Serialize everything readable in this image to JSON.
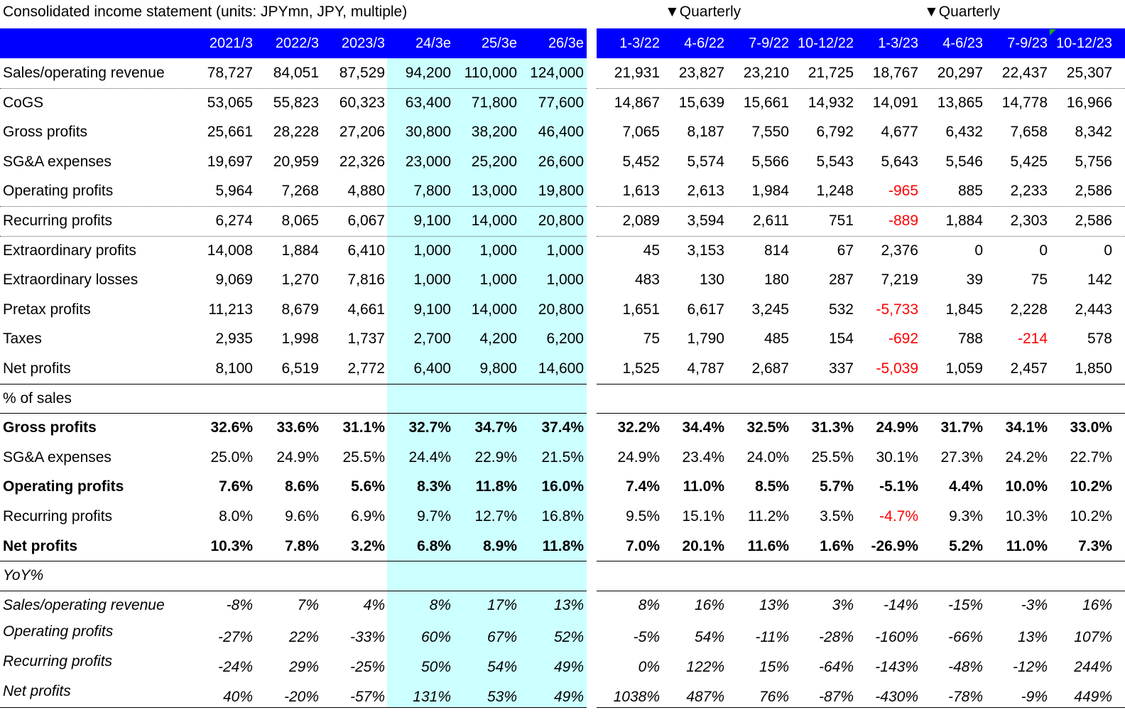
{
  "title": "Consolidated income statement (units: JPYmn, JPY, multiple)",
  "quarterly_labels": [
    "▼Quarterly",
    "▼Quarterly"
  ],
  "annual_headers": [
    "2021/3",
    "2022/3",
    "2023/3",
    "24/3e",
    "25/3e",
    "26/3e"
  ],
  "quarter_headers": [
    "1-3/22",
    "4-6/22",
    "7-9/22",
    "10-12/22",
    "1-3/23",
    "4-6/23",
    "7-9/23",
    "10-12/23"
  ],
  "rows": [
    {
      "label": "Sales/operating revenue",
      "style": "normal",
      "annual": [
        "78,727",
        "84,051",
        "87,529",
        "94,200",
        "110,000",
        "124,000"
      ],
      "quarterly": [
        "21,931",
        "23,827",
        "23,210",
        "21,725",
        "18,767",
        "20,297",
        "22,437",
        "25,307"
      ]
    },
    {
      "label": "CoGS",
      "style": "normal",
      "annual": [
        "53,065",
        "55,823",
        "60,323",
        "63,400",
        "71,800",
        "77,600"
      ],
      "quarterly": [
        "14,867",
        "15,639",
        "15,661",
        "14,932",
        "14,091",
        "13,865",
        "14,778",
        "16,966"
      ]
    },
    {
      "label": "Gross profits",
      "style": "normal",
      "annual": [
        "25,661",
        "28,228",
        "27,206",
        "30,800",
        "38,200",
        "46,400"
      ],
      "quarterly": [
        "7,065",
        "8,187",
        "7,550",
        "6,792",
        "4,677",
        "6,432",
        "7,658",
        "8,342"
      ]
    },
    {
      "label": "SG&A expenses",
      "style": "normal",
      "annual": [
        "19,697",
        "20,959",
        "22,326",
        "23,000",
        "25,200",
        "26,600"
      ],
      "quarterly": [
        "5,452",
        "5,574",
        "5,566",
        "5,543",
        "5,643",
        "5,546",
        "5,425",
        "5,756"
      ]
    },
    {
      "label": "Operating profits",
      "style": "normal",
      "annual": [
        "5,964",
        "7,268",
        "4,880",
        "7,800",
        "13,000",
        "19,800"
      ],
      "quarterly": [
        "1,613",
        "2,613",
        "1,984",
        "1,248",
        "-965",
        "885",
        "2,233",
        "2,586"
      ]
    },
    {
      "label": "Recurring profits",
      "style": "normal",
      "annual": [
        "6,274",
        "8,065",
        "6,067",
        "9,100",
        "14,000",
        "20,800"
      ],
      "quarterly": [
        "2,089",
        "3,594",
        "2,611",
        "751",
        "-889",
        "1,884",
        "2,303",
        "2,586"
      ]
    },
    {
      "label": "Extraordinary profits",
      "style": "normal",
      "annual": [
        "14,008",
        "1,884",
        "6,410",
        "1,000",
        "1,000",
        "1,000"
      ],
      "quarterly": [
        "45",
        "3,153",
        "814",
        "67",
        "2,376",
        "0",
        "0",
        "0"
      ]
    },
    {
      "label": "Extraordinary losses",
      "style": "normal",
      "annual": [
        "9,069",
        "1,270",
        "7,816",
        "1,000",
        "1,000",
        "1,000"
      ],
      "quarterly": [
        "483",
        "130",
        "180",
        "287",
        "7,219",
        "39",
        "75",
        "142"
      ]
    },
    {
      "label": "Pretax profits",
      "style": "normal",
      "annual": [
        "11,213",
        "8,679",
        "4,661",
        "9,100",
        "14,000",
        "20,800"
      ],
      "quarterly": [
        "1,651",
        "6,617",
        "3,245",
        "532",
        "-5,733",
        "1,845",
        "2,228",
        "2,443"
      ]
    },
    {
      "label": "Taxes",
      "style": "normal",
      "annual": [
        "2,935",
        "1,998",
        "1,737",
        "2,700",
        "4,200",
        "6,200"
      ],
      "quarterly": [
        "75",
        "1,790",
        "485",
        "154",
        "-692",
        "788",
        "-214",
        "578"
      ]
    },
    {
      "label": "Net profits",
      "style": "normal",
      "annual": [
        "8,100",
        "6,519",
        "2,772",
        "6,400",
        "9,800",
        "14,600"
      ],
      "quarterly": [
        "1,525",
        "4,787",
        "2,687",
        "337",
        "-5,039",
        "1,059",
        "2,457",
        "1,850"
      ]
    },
    {
      "label": "% of sales",
      "style": "section",
      "annual": [],
      "quarterly": []
    },
    {
      "label": "Gross profits",
      "style": "bold",
      "annual": [
        "32.6%",
        "33.6%",
        "31.1%",
        "32.7%",
        "34.7%",
        "37.4%"
      ],
      "quarterly": [
        "32.2%",
        "34.4%",
        "32.5%",
        "31.3%",
        "24.9%",
        "31.7%",
        "34.1%",
        "33.0%"
      ]
    },
    {
      "label": "SG&A expenses",
      "style": "normal",
      "annual": [
        "25.0%",
        "24.9%",
        "25.5%",
        "24.4%",
        "22.9%",
        "21.5%"
      ],
      "quarterly": [
        "24.9%",
        "23.4%",
        "24.0%",
        "25.5%",
        "30.1%",
        "27.3%",
        "24.2%",
        "22.7%"
      ]
    },
    {
      "label": "Operating profits",
      "style": "bold",
      "annual": [
        "7.6%",
        "8.6%",
        "5.6%",
        "8.3%",
        "11.8%",
        "16.0%"
      ],
      "quarterly": [
        "7.4%",
        "11.0%",
        "8.5%",
        "5.7%",
        "-5.1%",
        "4.4%",
        "10.0%",
        "10.2%"
      ]
    },
    {
      "label": "Recurring profits",
      "style": "normal",
      "annual": [
        "8.0%",
        "9.6%",
        "6.9%",
        "9.7%",
        "12.7%",
        "16.8%"
      ],
      "quarterly": [
        "9.5%",
        "15.1%",
        "11.2%",
        "3.5%",
        "-4.7%",
        "9.3%",
        "10.3%",
        "10.2%"
      ]
    },
    {
      "label": "Net profits",
      "style": "bold",
      "annual": [
        "10.3%",
        "7.8%",
        "3.2%",
        "6.8%",
        "8.9%",
        "11.8%"
      ],
      "quarterly": [
        "7.0%",
        "20.1%",
        "11.6%",
        "1.6%",
        "-26.9%",
        "5.2%",
        "11.0%",
        "7.3%"
      ]
    },
    {
      "label": "YoY%",
      "style": "section-italic",
      "annual": [],
      "quarterly": []
    },
    {
      "label": "Sales/operating revenue",
      "style": "italic",
      "annual": [
        "-8%",
        "7%",
        "4%",
        "8%",
        "17%",
        "13%"
      ],
      "quarterly": [
        "8%",
        "16%",
        "13%",
        "3%",
        "-14%",
        "-15%",
        "-3%",
        "16%"
      ]
    },
    {
      "label": "Operating profits",
      "style": "italic-offset",
      "annual": [
        "-27%",
        "22%",
        "-33%",
        "60%",
        "67%",
        "52%"
      ],
      "quarterly": [
        "-5%",
        "54%",
        "-11%",
        "-28%",
        "-160%",
        "-66%",
        "13%",
        "107%"
      ]
    },
    {
      "label": "Recurring profits",
      "style": "italic-offset",
      "annual": [
        "-24%",
        "29%",
        "-25%",
        "50%",
        "54%",
        "49%"
      ],
      "quarterly": [
        "0%",
        "122%",
        "15%",
        "-64%",
        "-143%",
        "-48%",
        "-12%",
        "244%"
      ]
    },
    {
      "label": "Net profits",
      "style": "italic-offset",
      "annual": [
        "40%",
        "-20%",
        "-57%",
        "131%",
        "53%",
        "49%"
      ],
      "quarterly": [
        "1038%",
        "487%",
        "76%",
        "-87%",
        "-430%",
        "-78%",
        "-9%",
        "449%"
      ]
    }
  ],
  "colors": {
    "header_bar": "#0000ff",
    "forecast_shade": "#ccffff",
    "negative": "#ff0000",
    "flag": "#22aa22"
  }
}
